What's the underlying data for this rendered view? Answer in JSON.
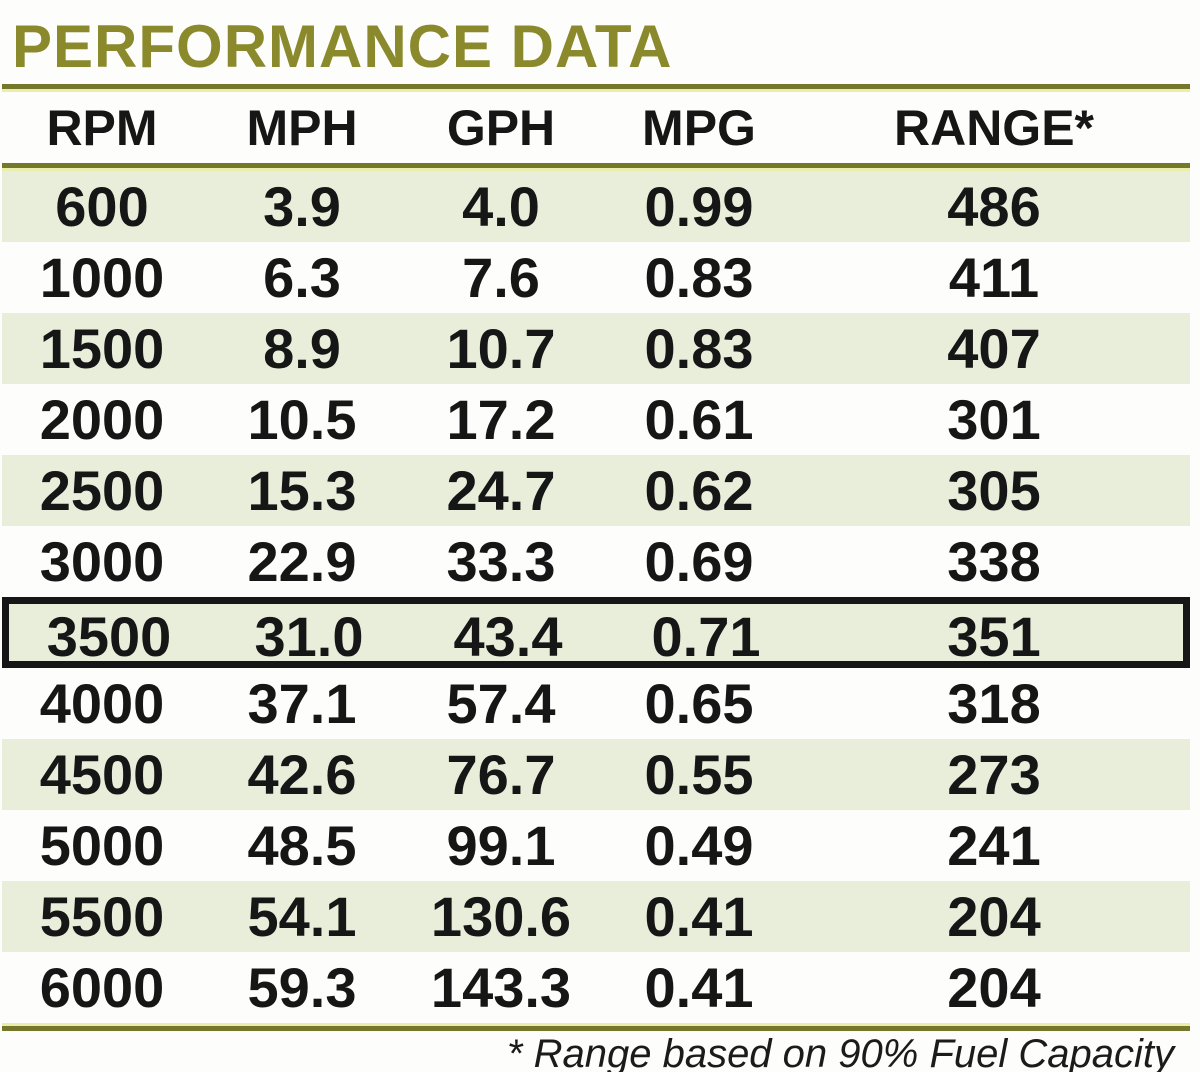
{
  "page_title": "PERFORMANCE DATA",
  "table": {
    "columns": [
      "RPM",
      "MPH",
      "GPH",
      "MPG",
      "RANGE*"
    ],
    "column_keys": [
      "rpm",
      "mph",
      "gph",
      "mpg",
      "range"
    ],
    "rows": [
      [
        "600",
        "3.9",
        "4.0",
        "0.99",
        "486"
      ],
      [
        "1000",
        "6.3",
        "7.6",
        "0.83",
        "411"
      ],
      [
        "1500",
        "8.9",
        "10.7",
        "0.83",
        "407"
      ],
      [
        "2000",
        "10.5",
        "17.2",
        "0.61",
        "301"
      ],
      [
        "2500",
        "15.3",
        "24.7",
        "0.62",
        "305"
      ],
      [
        "3000",
        "22.9",
        "33.3",
        "0.69",
        "338"
      ],
      [
        "3500",
        "31.0",
        "43.4",
        "0.71",
        "351"
      ],
      [
        "4000",
        "37.1",
        "57.4",
        "0.65",
        "318"
      ],
      [
        "4500",
        "42.6",
        "76.7",
        "0.55",
        "273"
      ],
      [
        "5000",
        "48.5",
        "99.1",
        "0.49",
        "241"
      ],
      [
        "5500",
        "54.1",
        "130.6",
        "0.41",
        "204"
      ],
      [
        "6000",
        "59.3",
        "143.3",
        "0.41",
        "204"
      ]
    ],
    "highlight_row_index": 6,
    "highlight_row_rpm": "3500"
  },
  "footnote": "* Range based on 90% Fuel Capacity",
  "colors": {
    "title_olive": "#8a8a2c",
    "rule_dark_olive": "#75782a",
    "rule_pale_yellow": "#e9edae",
    "row_shade_green": "#e9eedb",
    "highlight_border_black": "#161616",
    "text_black": "#161616",
    "background_white": "#fdfdfb"
  }
}
